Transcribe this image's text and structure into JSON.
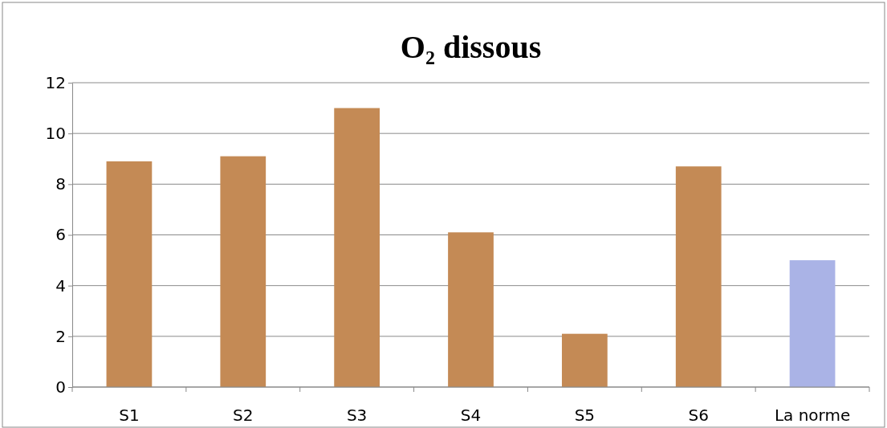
{
  "chart_data": {
    "type": "bar",
    "title": "O₂ dissous",
    "categories": [
      "S1",
      "S2",
      "S3",
      "S4",
      "S5",
      "S6",
      "La norme"
    ],
    "values": [
      8.9,
      9.1,
      11.0,
      6.1,
      2.1,
      8.7,
      5.0
    ],
    "colors": [
      "#c48a55",
      "#c48a55",
      "#c48a55",
      "#c48a55",
      "#c48a55",
      "#c48a55",
      "#aab3e6"
    ],
    "ylim": [
      0,
      12
    ],
    "yticks": [
      0,
      2,
      4,
      6,
      8,
      10,
      12
    ],
    "grid": "y"
  }
}
